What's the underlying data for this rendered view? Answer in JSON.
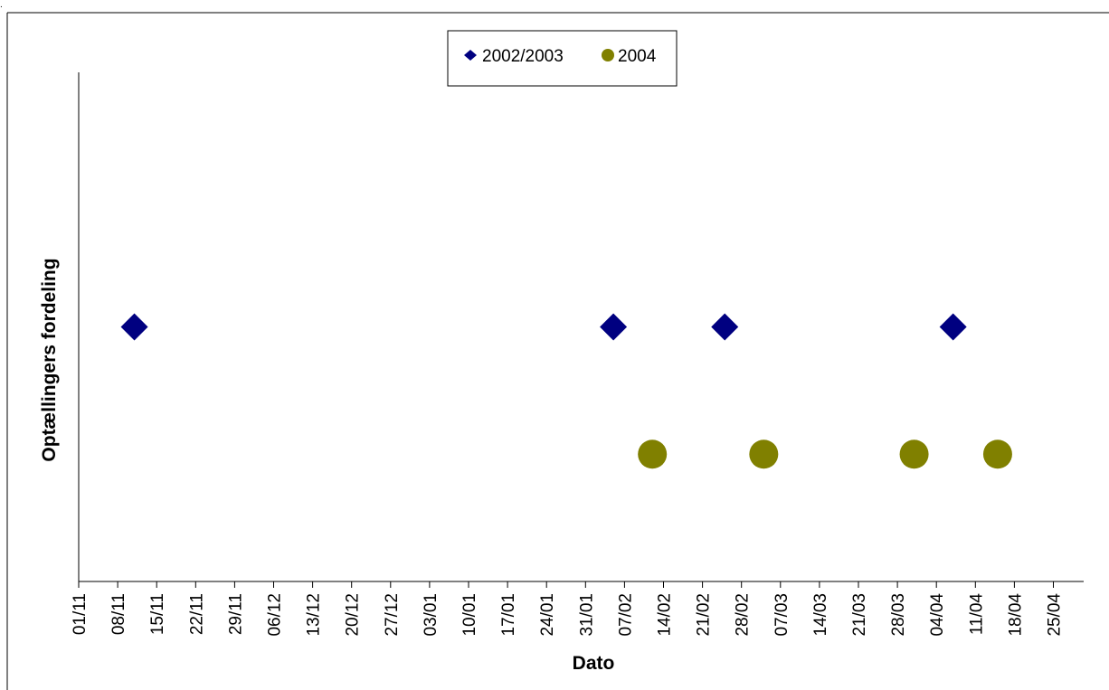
{
  "chart_data": {
    "type": "scatter",
    "title": "",
    "xlabel": "Dato",
    "ylabel": "Optællingers fordeling",
    "x_axis": {
      "type": "date",
      "tick_labels": [
        "01/11",
        "08/11",
        "15/11",
        "22/11",
        "29/11",
        "06/12",
        "13/12",
        "20/12",
        "27/12",
        "03/01",
        "10/01",
        "17/01",
        "24/01",
        "31/01",
        "07/02",
        "14/02",
        "21/02",
        "28/02",
        "07/03",
        "14/03",
        "21/03",
        "28/03",
        "04/04",
        "11/04",
        "18/04",
        "25/04"
      ],
      "xlim": [
        "01/11",
        "30/04"
      ]
    },
    "y_axis": {
      "ylim": [
        0,
        4
      ],
      "tick_labels_shown": false
    },
    "grid": false,
    "legend": {
      "position": "top-center",
      "boxed": true
    },
    "series": [
      {
        "name": "2002/2003",
        "marker": "diamond",
        "color": "#000080",
        "points": [
          {
            "x": "11/11",
            "y": 2
          },
          {
            "x": "05/02",
            "y": 2
          },
          {
            "x": "25/02",
            "y": 2
          },
          {
            "x": "07/04",
            "y": 2
          }
        ]
      },
      {
        "name": "2004",
        "marker": "circle",
        "color": "#808000",
        "points": [
          {
            "x": "12/02",
            "y": 1
          },
          {
            "x": "04/03",
            "y": 1
          },
          {
            "x": "31/03",
            "y": 1
          },
          {
            "x": "15/04",
            "y": 1
          }
        ]
      }
    ]
  }
}
